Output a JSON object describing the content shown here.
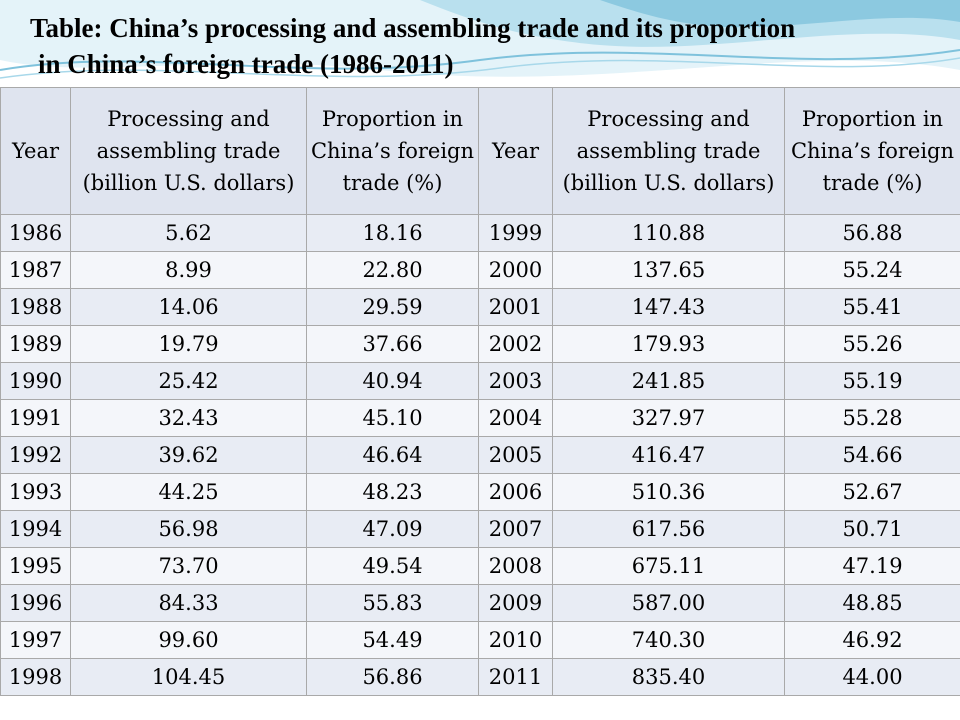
{
  "title": {
    "line1": "Table: China’s processing and assembling trade and its proportion",
    "line2": "in China’s foreign trade (1986-2011)"
  },
  "table": {
    "headers": [
      "Year",
      "Processing and assembling trade (billion U.S. dollars)",
      "Proportion in China’s foreign trade (%)",
      "Year",
      "Processing and assembling trade (billion U.S. dollars)",
      "Proportion in China’s foreign trade (%)"
    ],
    "rows": [
      [
        "1986",
        "5.62",
        "18.16",
        "1999",
        "110.88",
        "56.88"
      ],
      [
        "1987",
        "8.99",
        "22.80",
        "2000",
        "137.65",
        "55.24"
      ],
      [
        "1988",
        "14.06",
        "29.59",
        "2001",
        "147.43",
        "55.41"
      ],
      [
        "1989",
        "19.79",
        "37.66",
        "2002",
        "179.93",
        "55.26"
      ],
      [
        "1990",
        "25.42",
        "40.94",
        "2003",
        "241.85",
        "55.19"
      ],
      [
        "1991",
        "32.43",
        "45.10",
        "2004",
        "327.97",
        "55.28"
      ],
      [
        "1992",
        "39.62",
        "46.64",
        "2005",
        "416.47",
        "54.66"
      ],
      [
        "1993",
        "44.25",
        "48.23",
        "2006",
        "510.36",
        "52.67"
      ],
      [
        "1994",
        "56.98",
        "47.09",
        "2007",
        "617.56",
        "50.71"
      ],
      [
        "1995",
        "73.70",
        "49.54",
        "2008",
        "675.11",
        "47.19"
      ],
      [
        "1996",
        "84.33",
        "55.83",
        "2009",
        "587.00",
        "48.85"
      ],
      [
        "1997",
        "99.60",
        "54.49",
        "2010",
        "740.30",
        "46.92"
      ],
      [
        "1998",
        "104.45",
        "56.86",
        "2011",
        "835.40",
        "44.00"
      ]
    ]
  },
  "colors": {
    "wave_light": "#cfeaf4",
    "wave_mid": "#9fd3e6",
    "wave_dark": "#6fb9d6",
    "header_bg": "#dfe4ef",
    "row_odd": "#e8ecf4",
    "row_even": "#f4f6fa",
    "border": "#a9a9a9"
  }
}
